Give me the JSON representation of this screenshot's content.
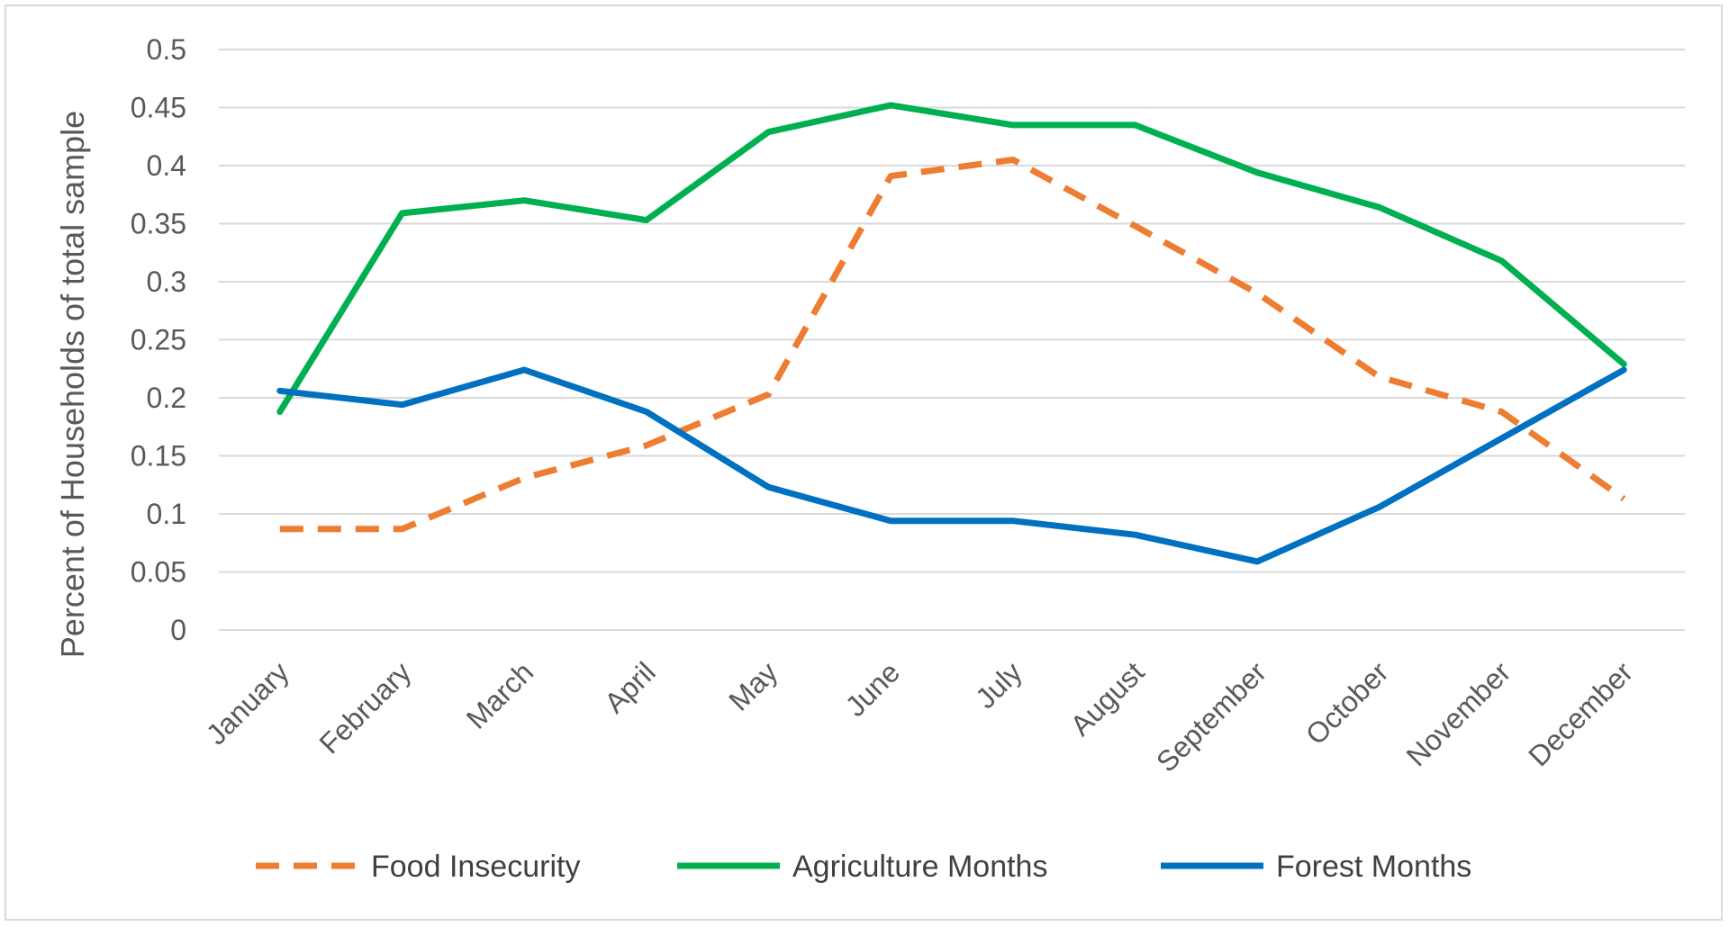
{
  "chart_data": {
    "type": "line",
    "title": "",
    "xlabel": "",
    "ylabel": "Percent of Households of total sample",
    "ylim": [
      0,
      0.5
    ],
    "yticks": [
      "0",
      "0.05",
      "0.1",
      "0.15",
      "0.2",
      "0.25",
      "0.3",
      "0.35",
      "0.4",
      "0.45",
      "0.5"
    ],
    "grid": true,
    "legend_position": "bottom",
    "categories": [
      "January",
      "February",
      "March",
      "April",
      "May",
      "June",
      "July",
      "August",
      "September",
      "October",
      "November",
      "December"
    ],
    "series": [
      {
        "name": "Food Insecurity",
        "color": "#ED7D31",
        "style": "dashed",
        "values": [
          0.087,
          0.087,
          0.131,
          0.159,
          0.203,
          0.391,
          0.405,
          0.348,
          0.29,
          0.218,
          0.188,
          0.113
        ]
      },
      {
        "name": "Agriculture Months",
        "color": "#00B050",
        "style": "solid",
        "values": [
          0.188,
          0.359,
          0.37,
          0.353,
          0.429,
          0.452,
          0.435,
          0.435,
          0.394,
          0.364,
          0.318,
          0.229
        ]
      },
      {
        "name": "Forest Months",
        "color": "#0070C0",
        "style": "solid",
        "values": [
          0.206,
          0.194,
          0.224,
          0.188,
          0.123,
          0.094,
          0.094,
          0.082,
          0.059,
          0.106,
          0.165,
          0.224
        ]
      }
    ]
  }
}
